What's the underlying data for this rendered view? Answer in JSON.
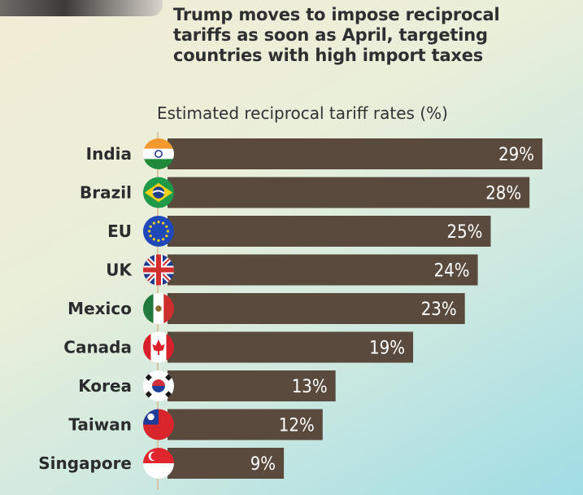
{
  "headline": "Trump moves to impose reciprocal\ntariffs as soon as April, targeting\ncountries with high import taxes",
  "chart_data": {
    "type": "bar",
    "orientation": "horizontal",
    "title": "Estimated reciprocal tariff rates (%)",
    "categories": [
      "India",
      "Brazil",
      "EU",
      "UK",
      "Mexico",
      "Canada",
      "Korea",
      "Taiwan",
      "Singapore"
    ],
    "values": [
      29,
      28,
      25,
      24,
      23,
      19,
      13,
      12,
      9
    ],
    "value_labels": [
      "29%",
      "28%",
      "25%",
      "24%",
      "23%",
      "19%",
      "13%",
      "12%",
      "9%"
    ],
    "flags": [
      "india-flag-icon",
      "brazil-flag-icon",
      "eu-flag-icon",
      "uk-flag-icon",
      "mexico-flag-icon",
      "canada-flag-icon",
      "korea-flag-icon",
      "taiwan-flag-icon",
      "singapore-flag-icon"
    ],
    "bar_color": "#5a4a3e",
    "label_color": "#ffffff",
    "grid": false,
    "legend": "none"
  }
}
